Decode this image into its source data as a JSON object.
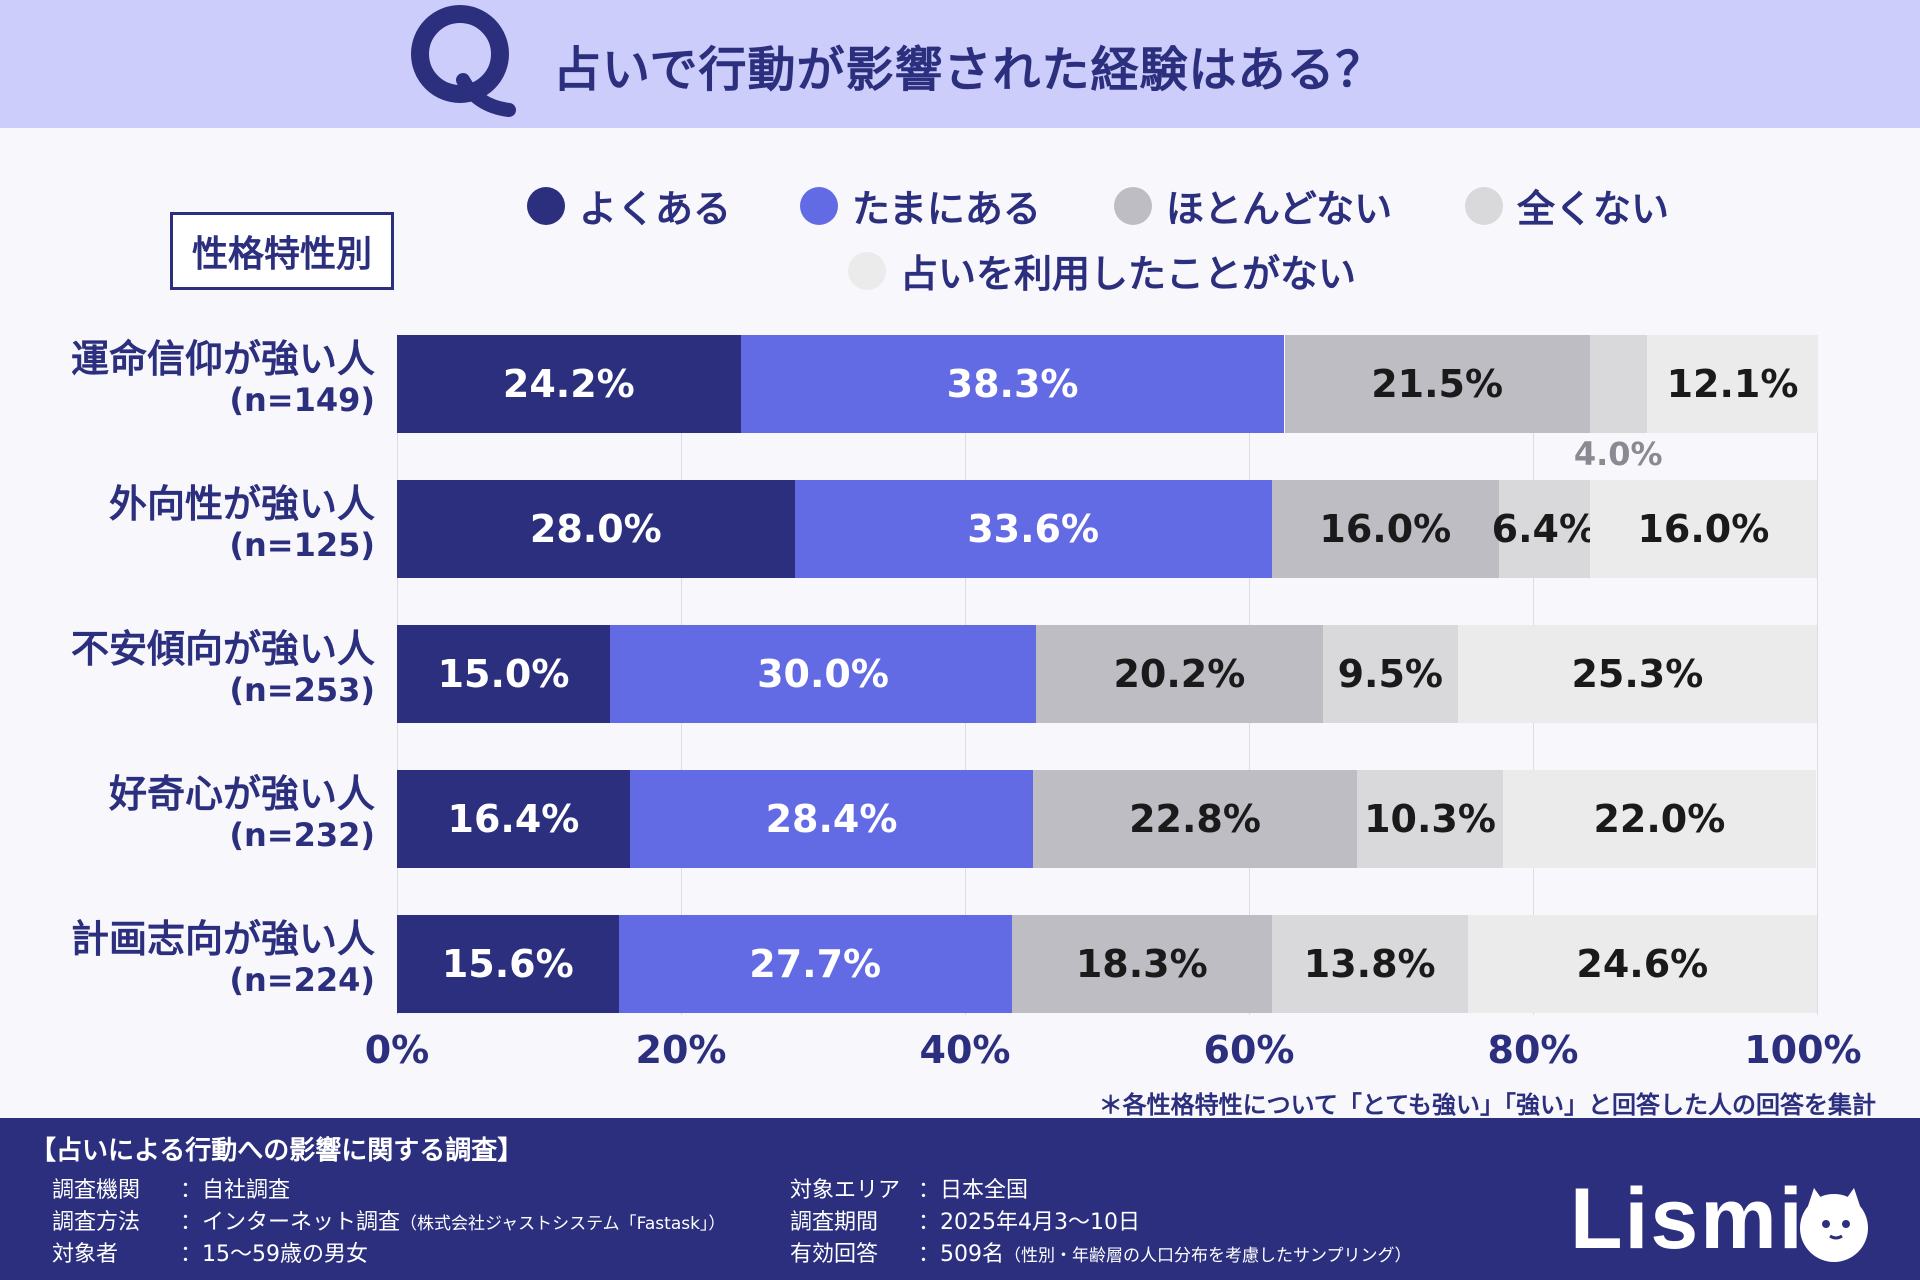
{
  "header": {
    "q_letter": "Q",
    "title": "占いで行動が影響された経験はある？"
  },
  "segment_label": "性格特性別",
  "colors": {
    "よくある": "#2b2f7e",
    "たまにある": "#626be4",
    "ほとんどない": "#bdbdc3",
    "全くない": "#d9d9dc",
    "占いを利用したことがない": "#ebebeb",
    "header_bg": "#cccdfb",
    "footer_bg": "#2b2f7e"
  },
  "chart_data": {
    "type": "bar",
    "orientation": "horizontal-stacked",
    "title": "占いで行動が影響された経験はある？",
    "categories": [
      "運命信仰が強い人",
      "外向性が強い人",
      "不安傾向が強い人",
      "好奇心が強い人",
      "計画志向が強い人"
    ],
    "sample_sizes": [
      "(n=149)",
      "(n=125)",
      "(n=253)",
      "(n=232)",
      "(n=224)"
    ],
    "series": [
      {
        "name": "よくある",
        "values": [
          24.2,
          28.0,
          15.0,
          16.4,
          15.6
        ],
        "labels": [
          "24.2%",
          "28.0%",
          "15.0%",
          "16.4%",
          "15.6%"
        ]
      },
      {
        "name": "たまにある",
        "values": [
          38.3,
          33.6,
          30.0,
          28.4,
          27.7
        ],
        "labels": [
          "38.3%",
          "33.6%",
          "30.0%",
          "28.4%",
          "27.7%"
        ]
      },
      {
        "name": "ほとんどない",
        "values": [
          21.5,
          16.0,
          20.2,
          22.8,
          18.3
        ],
        "labels": [
          "21.5%",
          "16.0%",
          "20.2%",
          "22.8%",
          "18.3%"
        ]
      },
      {
        "name": "全くない",
        "values": [
          4.0,
          6.4,
          9.5,
          10.3,
          13.8
        ],
        "labels": [
          "4.0%",
          "6.4%",
          "9.5%",
          "10.3%",
          "13.8%"
        ]
      },
      {
        "name": "占いを利用したことがない",
        "values": [
          12.1,
          16.0,
          25.3,
          22.0,
          24.6
        ],
        "labels": [
          "12.1%",
          "16.0%",
          "25.3%",
          "22.0%",
          "24.6%"
        ]
      }
    ],
    "xlim": [
      0,
      100
    ],
    "x_ticks": [
      "0%",
      "20%",
      "40%",
      "60%",
      "80%",
      "100%"
    ],
    "legend": [
      "よくある",
      "たまにある",
      "ほとんどない",
      "全くない",
      "占いを利用したことがない"
    ],
    "legend_position": "top",
    "grid": true
  },
  "footnote": "＊各性格特性について「とても強い」「強い」と回答した人の回答を集計",
  "footer": {
    "title": "【占いによる行動への影響に関する調査】",
    "items_left": [
      {
        "key": "調査機関",
        "value": "：自社調査",
        "note": ""
      },
      {
        "key": "調査方法",
        "value": "：インターネット調査",
        "note": "（株式会社ジャストシステム「Fastask」）"
      },
      {
        "key": "対象者",
        "value": "：15〜59歳の男女",
        "note": ""
      }
    ],
    "items_right": [
      {
        "key": "対象エリア",
        "value": "：日本全国",
        "note": ""
      },
      {
        "key": "調査期間",
        "value": "：2025年4月3〜10日",
        "note": ""
      },
      {
        "key": "有効回答",
        "value": "：509名",
        "note": "（性別・年齢層の人口分布を考慮したサンプリング）"
      }
    ],
    "logo": "Lismi"
  }
}
